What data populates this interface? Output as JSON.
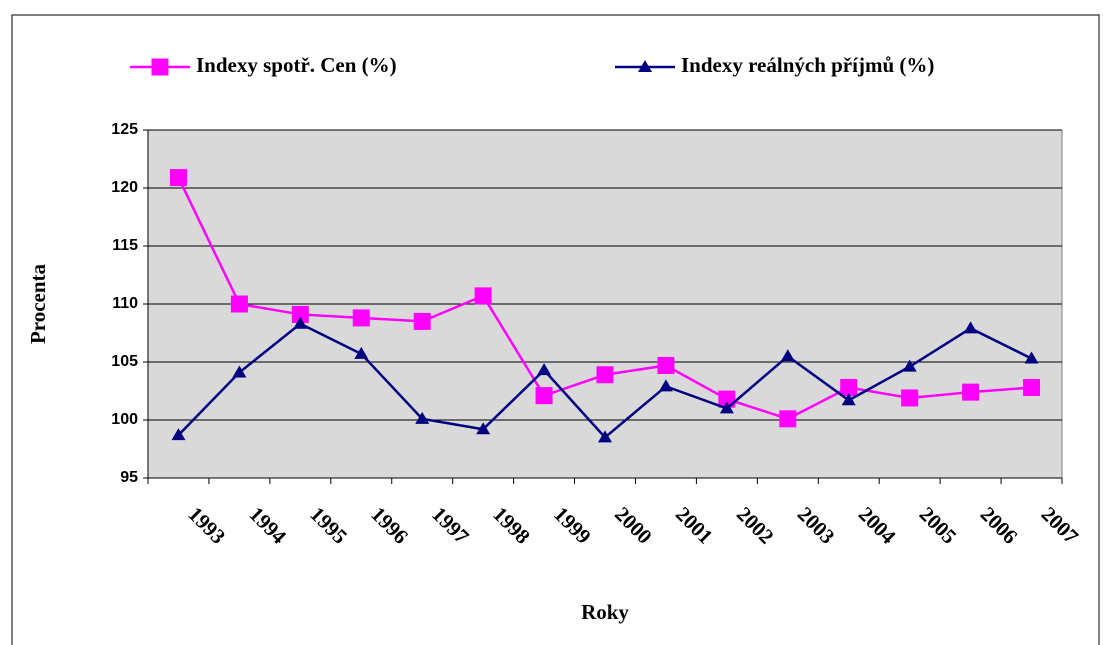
{
  "chart_data": {
    "type": "line",
    "x_label": "Roky",
    "y_label": "Procenta",
    "categories": [
      "1993",
      "1994",
      "1995",
      "1996",
      "1997",
      "1998",
      "1999",
      "2000",
      "2001",
      "2002",
      "2003",
      "2004",
      "2005",
      "2006",
      "2007"
    ],
    "series": [
      {
        "name": "Indexy spotř. Cen (%)",
        "color": "#ff00ff",
        "marker": "square",
        "values": [
          120.9,
          110.0,
          109.1,
          108.8,
          108.5,
          110.7,
          102.1,
          103.9,
          104.7,
          101.8,
          100.1,
          102.8,
          101.9,
          102.4,
          102.8
        ]
      },
      {
        "name": "Indexy reálných příjmů (%)",
        "color": "#000080",
        "marker": "triangle",
        "values": [
          98.7,
          104.1,
          108.3,
          105.7,
          100.1,
          99.2,
          104.3,
          98.5,
          102.9,
          101.0,
          105.5,
          101.7,
          104.6,
          107.9,
          105.3
        ]
      }
    ],
    "ylim": [
      95,
      125
    ],
    "yticks": [
      95,
      100,
      105,
      110,
      115,
      120,
      125
    ],
    "grid": true,
    "legend": "top"
  }
}
